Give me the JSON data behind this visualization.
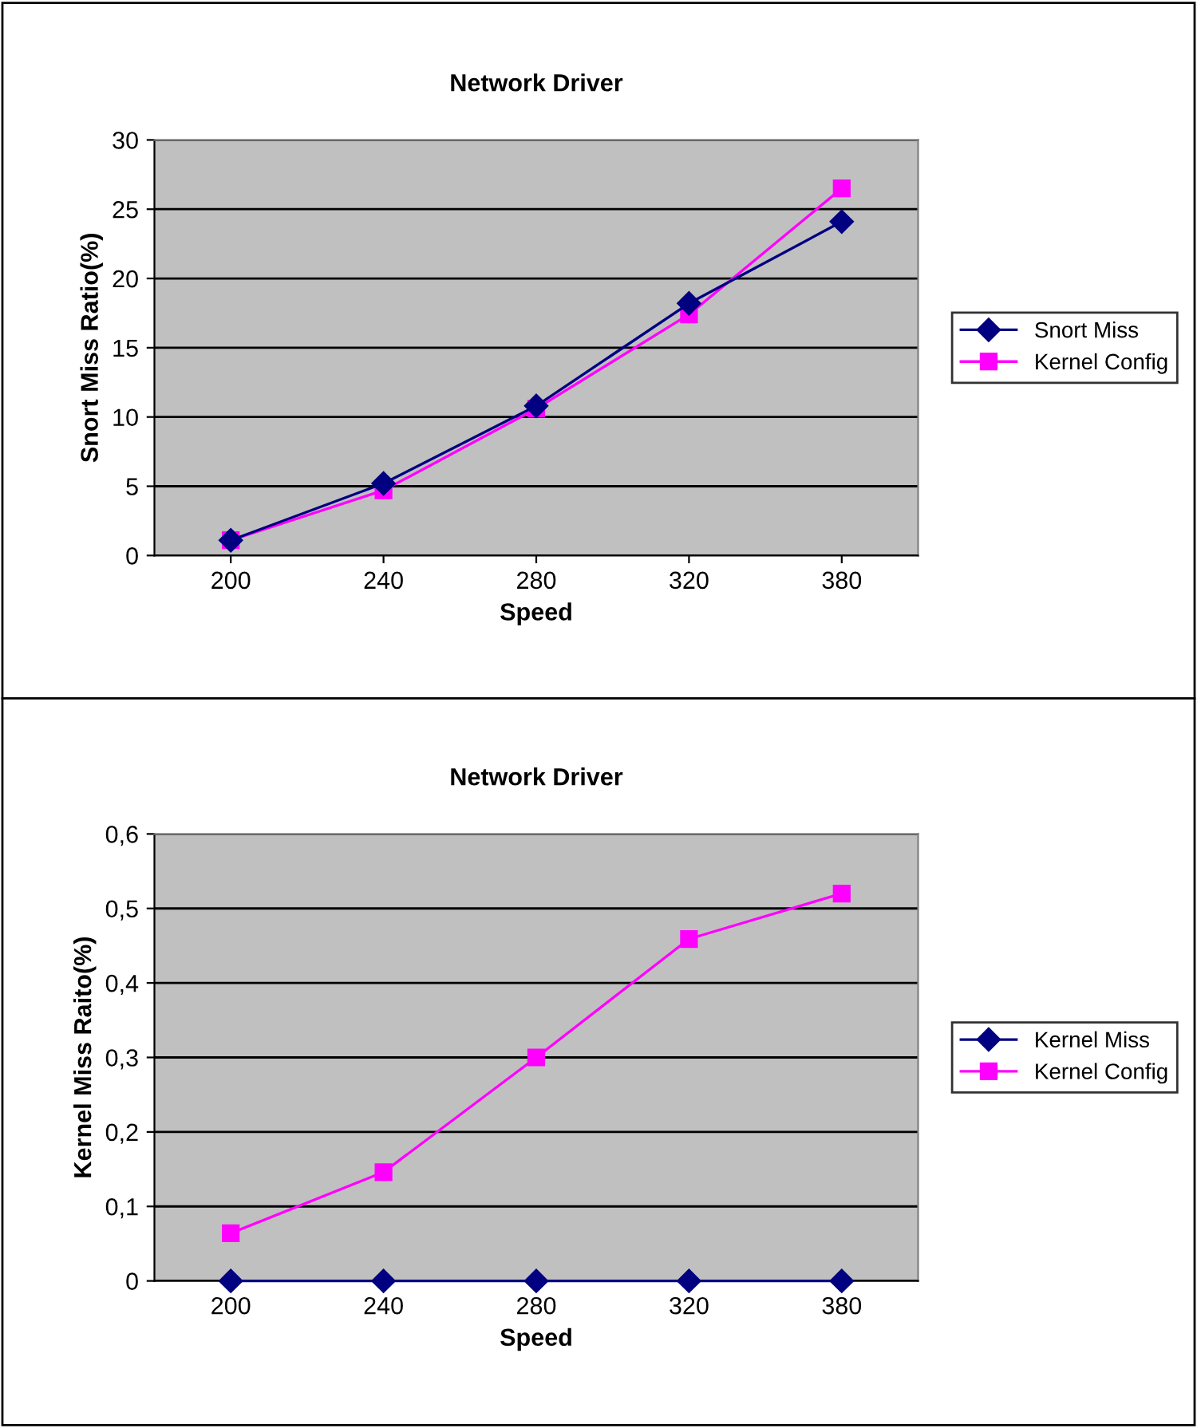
{
  "chart_data": [
    {
      "type": "line",
      "title": "Network Driver",
      "xlabel": "Speed",
      "ylabel": "Snort Miss Ratio(%)",
      "categories": [
        "200",
        "240",
        "280",
        "320",
        "380"
      ],
      "series": [
        {
          "name": "Snort Miss",
          "color": "#000080",
          "marker": "diamond",
          "values": [
            1.1,
            5.2,
            10.8,
            18.2,
            24.1
          ]
        },
        {
          "name": "Kernel Config",
          "color": "#ff00ff",
          "marker": "square",
          "values": [
            1.1,
            4.7,
            10.6,
            17.4,
            26.5
          ]
        }
      ],
      "ylim": [
        0,
        30
      ],
      "yticks": [
        0,
        5,
        10,
        15,
        20,
        25,
        30
      ],
      "grid": "y",
      "legend": "right"
    },
    {
      "type": "line",
      "title": "Network Driver",
      "xlabel": "Speed",
      "ylabel": "Kernel Miss Raito(%)",
      "categories": [
        "200",
        "240",
        "280",
        "320",
        "380"
      ],
      "series": [
        {
          "name": "Kernel Miss",
          "color": "#000080",
          "marker": "diamond",
          "values": [
            0,
            0,
            0,
            0,
            0
          ]
        },
        {
          "name": "Kernel Config",
          "color": "#ff00ff",
          "marker": "square",
          "values": [
            0.064,
            0.146,
            0.3,
            0.459,
            0.52
          ]
        }
      ],
      "ylim": [
        0,
        0.6
      ],
      "yticks": [
        0,
        {
          "value": 0.1,
          "label": "0,1"
        },
        {
          "value": 0.2,
          "label": "0,2"
        },
        {
          "value": 0.3,
          "label": "0,3"
        },
        {
          "value": 0.4,
          "label": "0,4"
        },
        {
          "value": 0.5,
          "label": "0,5"
        },
        {
          "value": 0.6,
          "label": "0,6"
        }
      ],
      "grid": "y",
      "legend": "right"
    }
  ]
}
